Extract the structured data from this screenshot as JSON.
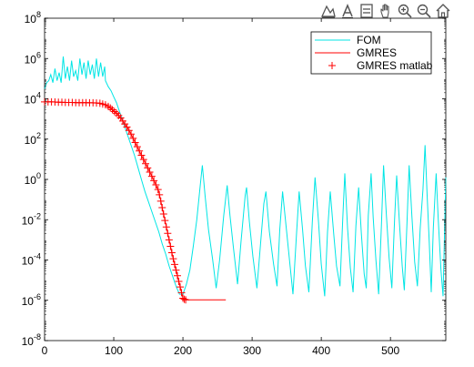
{
  "toolbar": {
    "buttons": [
      {
        "name": "autoscale-button",
        "icon": "autoscale-icon"
      },
      {
        "name": "text-annotation-button",
        "icon": "text-icon"
      },
      {
        "name": "grid-toggle-button",
        "icon": "grid-icon"
      },
      {
        "name": "pan-button",
        "icon": "hand-icon"
      },
      {
        "name": "zoom-in-button",
        "icon": "zoom-in-icon"
      },
      {
        "name": "zoom-out-button",
        "icon": "zoom-out-icon"
      },
      {
        "name": "home-button",
        "icon": "home-icon"
      }
    ]
  },
  "chart_data": {
    "type": "line",
    "title": "",
    "xlabel": "",
    "ylabel": "",
    "xlim": [
      0,
      580
    ],
    "ylim_log10": [
      -8,
      8
    ],
    "yscale": "log",
    "grid": false,
    "legend_position": "top-right",
    "x_ticks": [
      "0",
      "100",
      "200",
      "300",
      "400",
      "500"
    ],
    "x_tick_values": [
      0,
      100,
      200,
      300,
      400,
      500
    ],
    "y_tick_exponents": [
      -8,
      -6,
      -4,
      -2,
      0,
      2,
      4,
      6,
      8
    ],
    "y_tick_base": "10",
    "series": [
      {
        "name": "FOM",
        "color": "#00e5e5",
        "style": "line",
        "log10_points": [
          [
            0,
            4.5
          ],
          [
            3,
            4.8
          ],
          [
            6,
            4.9
          ],
          [
            9,
            5.2
          ],
          [
            12,
            4.8
          ],
          [
            15,
            5.5
          ],
          [
            18,
            4.9
          ],
          [
            21,
            5.3
          ],
          [
            24,
            4.8
          ],
          [
            27,
            6.1
          ],
          [
            30,
            5.0
          ],
          [
            33,
            5.6
          ],
          [
            36,
            4.9
          ],
          [
            39,
            5.9
          ],
          [
            42,
            5.1
          ],
          [
            45,
            5.4
          ],
          [
            48,
            4.9
          ],
          [
            51,
            6.0
          ],
          [
            54,
            5.2
          ],
          [
            57,
            5.8
          ],
          [
            60,
            5.0
          ],
          [
            63,
            5.9
          ],
          [
            66,
            5.2
          ],
          [
            69,
            5.7
          ],
          [
            72,
            5.0
          ],
          [
            75,
            6.0
          ],
          [
            78,
            5.1
          ],
          [
            81,
            5.8
          ],
          [
            84,
            5.1
          ],
          [
            87,
            5.6
          ],
          [
            88,
            4.9
          ],
          [
            92,
            4.6
          ],
          [
            96,
            4.4
          ],
          [
            100,
            4.1
          ],
          [
            104,
            3.8
          ],
          [
            108,
            3.4
          ],
          [
            112,
            3.0
          ],
          [
            116,
            2.6
          ],
          [
            120,
            2.2
          ],
          [
            125,
            1.7
          ],
          [
            130,
            1.2
          ],
          [
            135,
            0.6
          ],
          [
            140,
            0.0
          ],
          [
            145,
            -0.6
          ],
          [
            150,
            -1.1
          ],
          [
            155,
            -1.6
          ],
          [
            160,
            -2.1
          ],
          [
            165,
            -2.6
          ],
          [
            170,
            -3.2
          ],
          [
            175,
            -3.7
          ],
          [
            180,
            -4.3
          ],
          [
            185,
            -4.8
          ],
          [
            190,
            -5.3
          ],
          [
            195,
            -5.7
          ],
          [
            200,
            -5.7
          ],
          [
            205,
            -5.2
          ],
          [
            210,
            -4.5
          ],
          [
            215,
            -3.3
          ],
          [
            220,
            -2.0
          ],
          [
            225,
            -0.3
          ],
          [
            228,
            0.7
          ],
          [
            232,
            -0.8
          ],
          [
            237,
            -2.5
          ],
          [
            243,
            -4.0
          ],
          [
            248,
            -5.4
          ],
          [
            253,
            -4.0
          ],
          [
            259,
            -1.8
          ],
          [
            264,
            -0.3
          ],
          [
            268,
            -1.8
          ],
          [
            273,
            -3.4
          ],
          [
            279,
            -5.2
          ],
          [
            284,
            -3.1
          ],
          [
            290,
            -0.8
          ],
          [
            292,
            -0.4
          ],
          [
            296,
            -2.1
          ],
          [
            301,
            -3.8
          ],
          [
            307,
            -5.4
          ],
          [
            312,
            -3.3
          ],
          [
            317,
            -1.2
          ],
          [
            320,
            -0.6
          ],
          [
            325,
            -2.6
          ],
          [
            331,
            -4.2
          ],
          [
            336,
            -5.3
          ],
          [
            340,
            -2.5
          ],
          [
            344,
            -0.6
          ],
          [
            349,
            -2.3
          ],
          [
            354,
            -4.0
          ],
          [
            359,
            -5.7
          ],
          [
            364,
            -2.8
          ],
          [
            368,
            -0.6
          ],
          [
            373,
            -2.5
          ],
          [
            377,
            -4.3
          ],
          [
            382,
            -5.6
          ],
          [
            387,
            -2.1
          ],
          [
            391,
            0.1
          ],
          [
            396,
            -2.1
          ],
          [
            400,
            -4.2
          ],
          [
            405,
            -5.8
          ],
          [
            409,
            -2.6
          ],
          [
            413,
            -0.6
          ],
          [
            418,
            -2.7
          ],
          [
            422,
            -4.3
          ],
          [
            427,
            -5.3
          ],
          [
            431,
            -2.0
          ],
          [
            434,
            0.3
          ],
          [
            438,
            -2.4
          ],
          [
            442,
            -4.4
          ],
          [
            446,
            -5.6
          ],
          [
            450,
            -2.3
          ],
          [
            454,
            -0.4
          ],
          [
            458,
            -2.7
          ],
          [
            462,
            -4.7
          ],
          [
            465,
            -5.4
          ],
          [
            468,
            -1.8
          ],
          [
            472,
            0.3
          ],
          [
            475,
            -1.9
          ],
          [
            479,
            -4.0
          ],
          [
            483,
            -5.7
          ],
          [
            487,
            -2.2
          ],
          [
            490,
            0.7
          ],
          [
            494,
            -1.7
          ],
          [
            498,
            -3.9
          ],
          [
            502,
            -5.4
          ],
          [
            506,
            -2.0
          ],
          [
            509,
            0.2
          ],
          [
            513,
            -2.2
          ],
          [
            517,
            -4.3
          ],
          [
            520,
            -5.5
          ],
          [
            524,
            -2.1
          ],
          [
            527,
            0.7
          ],
          [
            531,
            -1.8
          ],
          [
            535,
            -4.1
          ],
          [
            539,
            -5.3
          ],
          [
            543,
            -2.4
          ],
          [
            547,
            -0.5
          ],
          [
            550,
            1.7
          ],
          [
            553,
            -0.8
          ],
          [
            556,
            -3.1
          ],
          [
            559,
            -5.6
          ],
          [
            562,
            -2.4
          ],
          [
            566,
            0.3
          ],
          [
            569,
            -1.9
          ],
          [
            573,
            -4.5
          ],
          [
            576,
            -5.8
          ],
          [
            580,
            0.1
          ]
        ]
      },
      {
        "name": "GMRES",
        "color": "#ff0000",
        "style": "line",
        "log10_points": [
          [
            0,
            3.85
          ],
          [
            10,
            3.85
          ],
          [
            20,
            3.83
          ],
          [
            30,
            3.82
          ],
          [
            40,
            3.82
          ],
          [
            50,
            3.81
          ],
          [
            60,
            3.81
          ],
          [
            70,
            3.8
          ],
          [
            80,
            3.78
          ],
          [
            88,
            3.7
          ],
          [
            95,
            3.55
          ],
          [
            100,
            3.4
          ],
          [
            105,
            3.25
          ],
          [
            110,
            3.05
          ],
          [
            115,
            2.8
          ],
          [
            120,
            2.55
          ],
          [
            125,
            2.25
          ],
          [
            130,
            1.9
          ],
          [
            135,
            1.55
          ],
          [
            140,
            1.2
          ],
          [
            145,
            0.85
          ],
          [
            150,
            0.5
          ],
          [
            155,
            0.15
          ],
          [
            160,
            -0.2
          ],
          [
            165,
            -0.6
          ],
          [
            170,
            -1.4
          ],
          [
            175,
            -2.2
          ],
          [
            180,
            -3.0
          ],
          [
            185,
            -3.8
          ],
          [
            190,
            -4.5
          ],
          [
            195,
            -5.2
          ],
          [
            200,
            -5.9
          ],
          [
            205,
            -5.98
          ],
          [
            210,
            -5.98
          ],
          [
            220,
            -5.98
          ],
          [
            230,
            -5.98
          ],
          [
            240,
            -5.98
          ],
          [
            250,
            -5.98
          ],
          [
            262,
            -5.98
          ]
        ]
      },
      {
        "name": "GMRES matlab",
        "color": "#ff0000",
        "style": "marker-plus",
        "log10_points": [
          [
            0,
            3.85
          ],
          [
            5,
            3.85
          ],
          [
            10,
            3.85
          ],
          [
            15,
            3.84
          ],
          [
            20,
            3.83
          ],
          [
            25,
            3.83
          ],
          [
            30,
            3.82
          ],
          [
            35,
            3.82
          ],
          [
            40,
            3.82
          ],
          [
            45,
            3.81
          ],
          [
            50,
            3.81
          ],
          [
            55,
            3.81
          ],
          [
            60,
            3.81
          ],
          [
            65,
            3.8
          ],
          [
            70,
            3.8
          ],
          [
            75,
            3.79
          ],
          [
            80,
            3.78
          ],
          [
            84,
            3.74
          ],
          [
            88,
            3.7
          ],
          [
            92,
            3.62
          ],
          [
            95,
            3.55
          ],
          [
            98,
            3.46
          ],
          [
            101,
            3.37
          ],
          [
            104,
            3.28
          ],
          [
            107,
            3.17
          ],
          [
            110,
            3.05
          ],
          [
            113,
            2.9
          ],
          [
            116,
            2.75
          ],
          [
            119,
            2.6
          ],
          [
            122,
            2.43
          ],
          [
            125,
            2.25
          ],
          [
            128,
            2.04
          ],
          [
            131,
            1.83
          ],
          [
            134,
            1.62
          ],
          [
            137,
            1.41
          ],
          [
            140,
            1.2
          ],
          [
            143,
            0.99
          ],
          [
            146,
            0.78
          ],
          [
            149,
            0.57
          ],
          [
            152,
            0.36
          ],
          [
            155,
            0.15
          ],
          [
            158,
            -0.06
          ],
          [
            161,
            -0.27
          ],
          [
            164,
            -0.5
          ],
          [
            166,
            -0.76
          ],
          [
            168,
            -1.08
          ],
          [
            170,
            -1.4
          ],
          [
            172,
            -1.72
          ],
          [
            174,
            -2.04
          ],
          [
            176,
            -2.36
          ],
          [
            178,
            -2.68
          ],
          [
            180,
            -3.0
          ],
          [
            182,
            -3.32
          ],
          [
            184,
            -3.64
          ],
          [
            186,
            -3.94
          ],
          [
            188,
            -4.22
          ],
          [
            190,
            -4.5
          ],
          [
            192,
            -4.78
          ],
          [
            194,
            -5.06
          ],
          [
            196,
            -5.34
          ],
          [
            198,
            -5.62
          ],
          [
            200,
            -5.9
          ],
          [
            202,
            -5.95
          ],
          [
            204,
            -5.98
          ]
        ]
      }
    ]
  }
}
